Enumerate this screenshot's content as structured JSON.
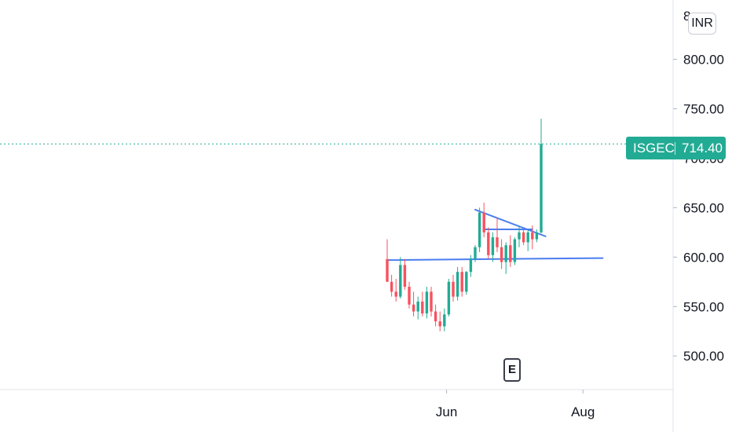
{
  "symbol": "ISGEC",
  "currency": "INR",
  "last_price_label": "714.40",
  "earnings_marker": "E",
  "colors": {
    "up": "#22ab94",
    "down": "#f7525f",
    "trendline": "#4a7df0",
    "last_price_line": "#22ab94",
    "axis_border": "#e0e3eb"
  },
  "chart_data": {
    "type": "candlestick",
    "title": "",
    "xlabel": "",
    "ylabel": "",
    "ylim": [
      466,
      860
    ],
    "y_ticks": [
      "800.00",
      "750.00",
      "700.00",
      "650.00",
      "600.00",
      "550.00",
      "500.00"
    ],
    "y_tick_values": [
      800,
      750,
      700,
      650,
      600,
      550,
      500
    ],
    "partial_top_label": "8",
    "x_ticks": [
      "Jun",
      "Aug"
    ],
    "x_tick_index": [
      13.5,
      44.5
    ],
    "last_price": 714.4,
    "candles": [
      {
        "o": 598,
        "h": 618,
        "l": 575,
        "c": 575
      },
      {
        "o": 575,
        "h": 582,
        "l": 560,
        "c": 565
      },
      {
        "o": 565,
        "h": 578,
        "l": 555,
        "c": 560
      },
      {
        "o": 560,
        "h": 600,
        "l": 558,
        "c": 592
      },
      {
        "o": 592,
        "h": 598,
        "l": 567,
        "c": 570
      },
      {
        "o": 570,
        "h": 575,
        "l": 548,
        "c": 552
      },
      {
        "o": 552,
        "h": 565,
        "l": 540,
        "c": 545
      },
      {
        "o": 545,
        "h": 560,
        "l": 537,
        "c": 555
      },
      {
        "o": 555,
        "h": 565,
        "l": 540,
        "c": 543
      },
      {
        "o": 543,
        "h": 570,
        "l": 538,
        "c": 565
      },
      {
        "o": 565,
        "h": 570,
        "l": 540,
        "c": 545
      },
      {
        "o": 545,
        "h": 552,
        "l": 530,
        "c": 535
      },
      {
        "o": 535,
        "h": 545,
        "l": 525,
        "c": 530
      },
      {
        "o": 530,
        "h": 548,
        "l": 525,
        "c": 542
      },
      {
        "o": 542,
        "h": 578,
        "l": 540,
        "c": 575
      },
      {
        "o": 575,
        "h": 582,
        "l": 555,
        "c": 560
      },
      {
        "o": 560,
        "h": 590,
        "l": 556,
        "c": 585
      },
      {
        "o": 585,
        "h": 590,
        "l": 560,
        "c": 565
      },
      {
        "o": 565,
        "h": 586,
        "l": 562,
        "c": 585
      },
      {
        "o": 585,
        "h": 602,
        "l": 580,
        "c": 598
      },
      {
        "o": 598,
        "h": 612,
        "l": 595,
        "c": 610
      },
      {
        "o": 610,
        "h": 650,
        "l": 605,
        "c": 645
      },
      {
        "o": 645,
        "h": 655,
        "l": 620,
        "c": 625
      },
      {
        "o": 625,
        "h": 630,
        "l": 598,
        "c": 602
      },
      {
        "o": 602,
        "h": 625,
        "l": 595,
        "c": 620
      },
      {
        "o": 620,
        "h": 640,
        "l": 605,
        "c": 610
      },
      {
        "o": 610,
        "h": 618,
        "l": 588,
        "c": 595
      },
      {
        "o": 595,
        "h": 615,
        "l": 583,
        "c": 612
      },
      {
        "o": 612,
        "h": 622,
        "l": 590,
        "c": 595
      },
      {
        "o": 595,
        "h": 620,
        "l": 592,
        "c": 618
      },
      {
        "o": 618,
        "h": 632,
        "l": 610,
        "c": 625
      },
      {
        "o": 625,
        "h": 630,
        "l": 612,
        "c": 615
      },
      {
        "o": 615,
        "h": 628,
        "l": 606,
        "c": 625
      },
      {
        "o": 625,
        "h": 632,
        "l": 608,
        "c": 618
      },
      {
        "o": 618,
        "h": 628,
        "l": 615,
        "c": 625
      },
      {
        "o": 625,
        "h": 740,
        "l": 624,
        "c": 714.4
      }
    ],
    "trendlines": [
      {
        "from": {
          "index": 0,
          "y": 597
        },
        "to": {
          "index": 49,
          "y": 599
        }
      },
      {
        "from": {
          "index": 20,
          "y": 648
        },
        "to": {
          "index": 36,
          "y": 621
        }
      },
      {
        "from": {
          "index": 22,
          "y": 628
        },
        "to": {
          "index": 33,
          "y": 628
        }
      }
    ]
  }
}
